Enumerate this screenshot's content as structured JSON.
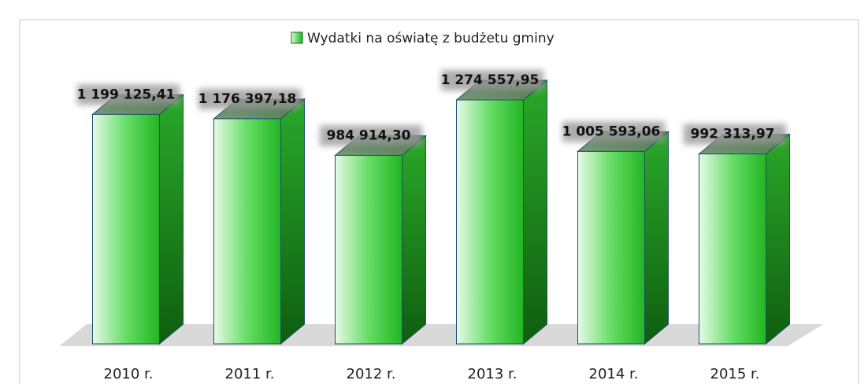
{
  "chart_data": {
    "type": "bar3d",
    "legend": "Wydatki na oświatę z budżetu gminy",
    "categories": [
      "2010 r.",
      "2011 r.",
      "2012 r.",
      "2013 r.",
      "2014 r.",
      "2015 r."
    ],
    "values": [
      1199125.41,
      1176397.18,
      984914.3,
      1274557.95,
      1005593.06,
      992313.97
    ],
    "value_labels": [
      "1 199 125,41",
      "1 176 397,18",
      "984 914,30",
      "1 274 557,95",
      "1 005 593,06",
      "992 313,97"
    ],
    "color": "#33cc33"
  }
}
